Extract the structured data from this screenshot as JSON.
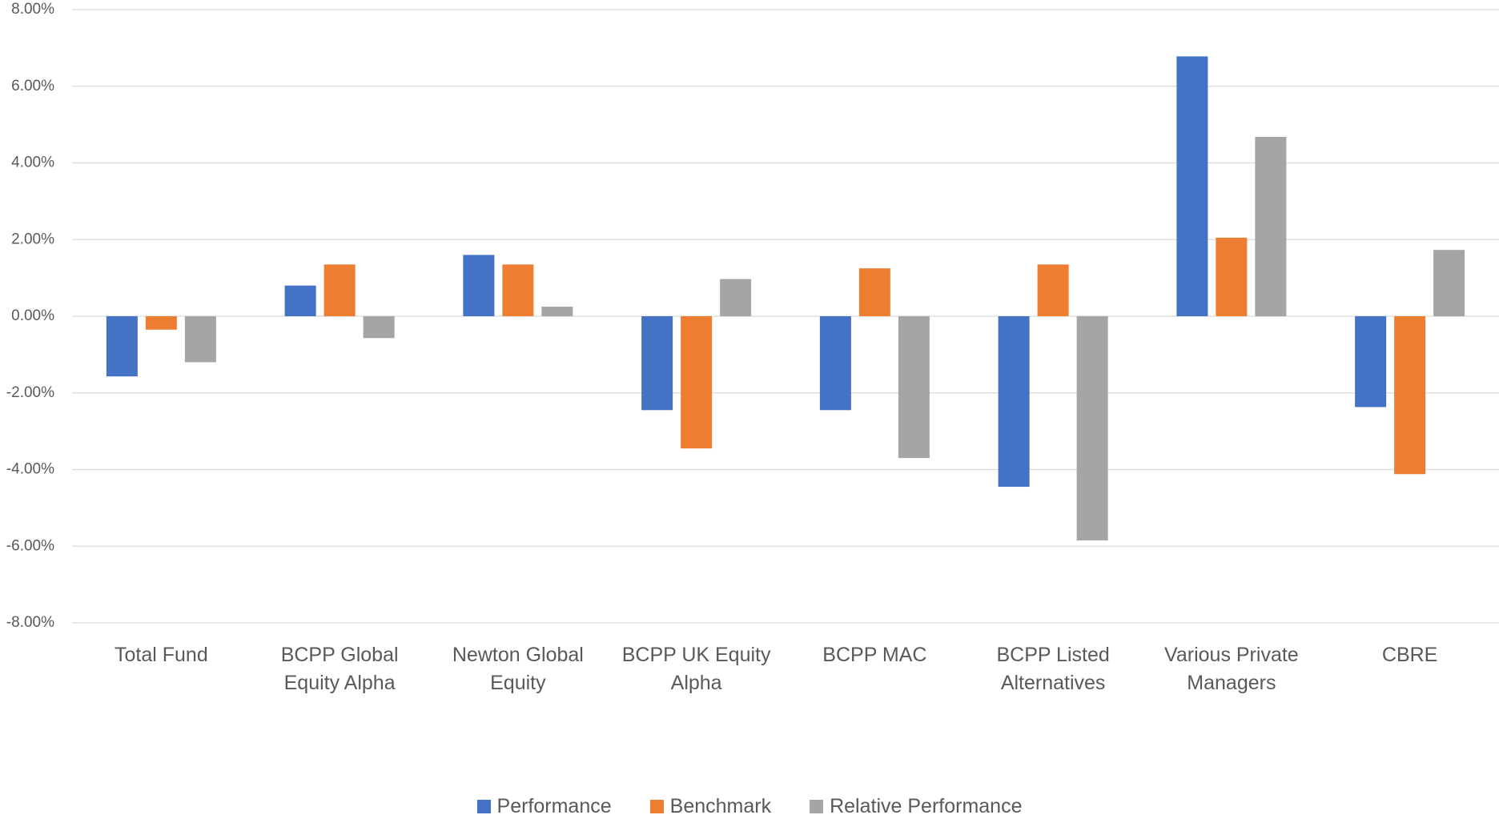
{
  "chart_data": {
    "type": "bar",
    "categories": [
      "Total Fund",
      "BCPP Global Equity Alpha",
      "Newton Global Equity",
      "BCPP UK Equity Alpha",
      "BCPP MAC",
      "BCPP Listed Alternatives",
      "Various Private Managers",
      "CBRE"
    ],
    "series": [
      {
        "name": "Performance",
        "color": "#4472c4",
        "values": [
          -1.57,
          0.8,
          1.6,
          -2.45,
          -2.45,
          -4.45,
          6.78,
          -2.37
        ]
      },
      {
        "name": "Benchmark",
        "color": "#ed7d31",
        "values": [
          -0.35,
          1.35,
          1.35,
          -3.45,
          1.25,
          1.35,
          2.05,
          -4.12
        ]
      },
      {
        "name": "Relative Performance",
        "color": "#a5a5a5",
        "values": [
          -1.2,
          -0.57,
          0.25,
          0.97,
          -3.7,
          -5.85,
          4.68,
          1.73
        ]
      }
    ],
    "ylim": [
      -8,
      8
    ],
    "yticks": [
      {
        "value": -8,
        "label": "-8.00%"
      },
      {
        "value": -6,
        "label": "-6.00%"
      },
      {
        "value": -4,
        "label": "-4.00%"
      },
      {
        "value": -2,
        "label": "-2.00%"
      },
      {
        "value": 0,
        "label": "0.00%"
      },
      {
        "value": 2,
        "label": "2.00%"
      },
      {
        "value": 4,
        "label": "4.00%"
      },
      {
        "value": 6,
        "label": "6.00%"
      },
      {
        "value": 8,
        "label": "8.00%"
      }
    ],
    "grid": true,
    "legend": "bottom"
  }
}
